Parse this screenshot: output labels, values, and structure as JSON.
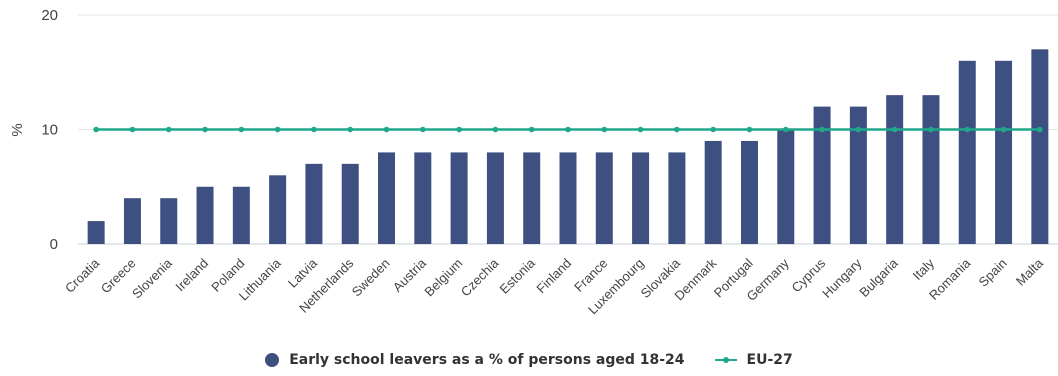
{
  "chart_data": {
    "type": "bar",
    "categories": [
      "Croatia",
      "Greece",
      "Slovenia",
      "Ireland",
      "Poland",
      "Lithuania",
      "Latvia",
      "Netherlands",
      "Sweden",
      "Austria",
      "Belgium",
      "Czechia",
      "Estonia",
      "Finland",
      "France",
      "Luxembourg",
      "Slovakia",
      "Denmark",
      "Portugal",
      "Germany",
      "Cyprus",
      "Hungary",
      "Bulgaria",
      "Italy",
      "Romania",
      "Spain",
      "Malta"
    ],
    "series": [
      {
        "name": "Early school leavers as a % of persons aged 18-24",
        "type": "bar",
        "color": "#3e5081",
        "values": [
          2,
          4,
          4,
          5,
          5,
          6,
          7,
          7,
          8,
          8,
          8,
          8,
          8,
          8,
          8,
          8,
          8,
          9,
          9,
          10,
          12,
          12,
          13,
          13,
          16,
          16,
          17
        ]
      },
      {
        "name": "EU-27",
        "type": "line",
        "color": "#1fa88a",
        "values": [
          10,
          10,
          10,
          10,
          10,
          10,
          10,
          10,
          10,
          10,
          10,
          10,
          10,
          10,
          10,
          10,
          10,
          10,
          10,
          10,
          10,
          10,
          10,
          10,
          10,
          10,
          10
        ]
      }
    ],
    "ylabel": "%",
    "yticks": [
      0,
      10,
      20
    ],
    "ylim": [
      0,
      20
    ],
    "grid": true,
    "legend": "bottom-center"
  }
}
